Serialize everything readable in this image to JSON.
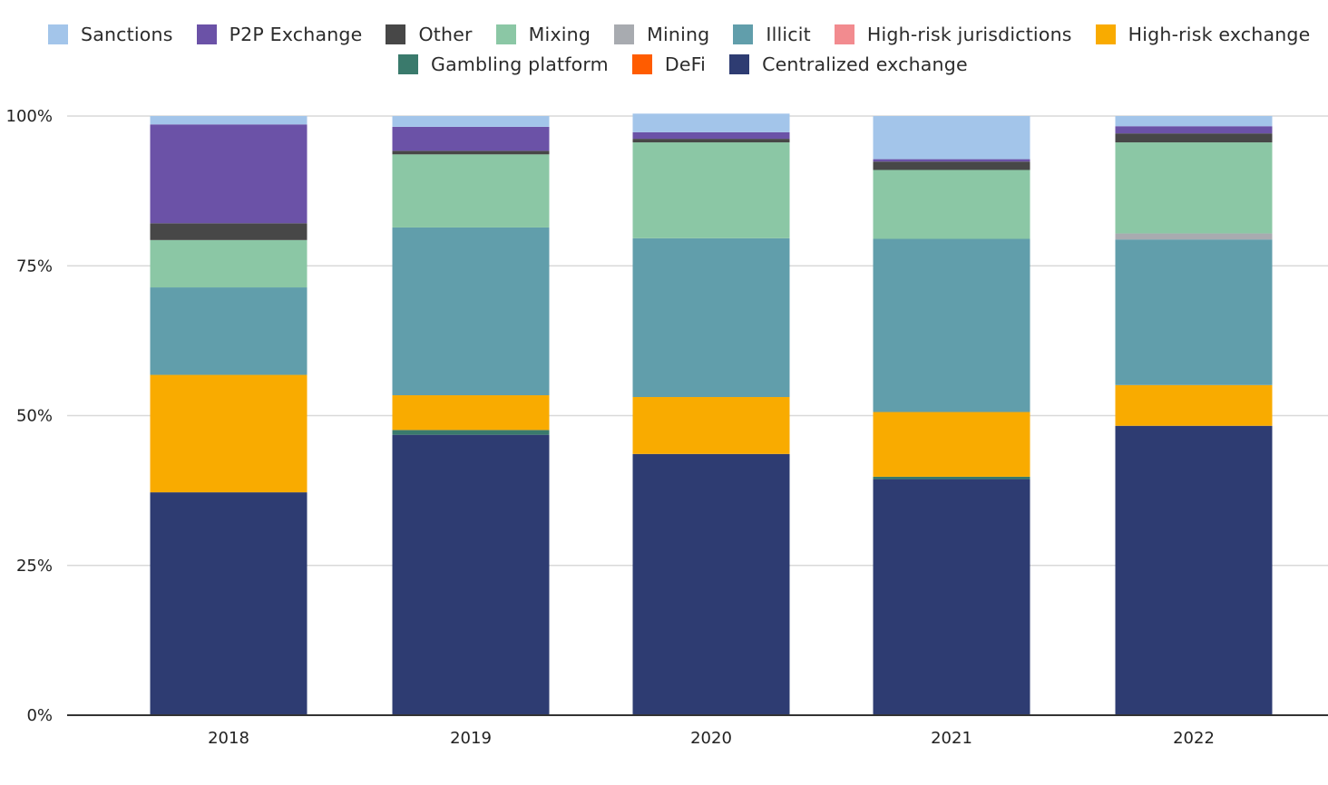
{
  "chart_data": {
    "type": "bar",
    "stacked": true,
    "categories": [
      "2018",
      "2019",
      "2020",
      "2021",
      "2022"
    ],
    "y_ticks": [
      "0%",
      "25%",
      "50%",
      "75%",
      "100%"
    ],
    "ylim": [
      0,
      100
    ],
    "grid": true,
    "legend_position": "top",
    "title": "",
    "xlabel": "",
    "ylabel": "",
    "series": [
      {
        "name": "Centralized exchange",
        "color": "#2e3c72",
        "values": [
          37.2,
          46.8,
          43.6,
          39.4,
          48.3
        ]
      },
      {
        "name": "DeFi",
        "color": "#ff5c00",
        "values": [
          0,
          0,
          0,
          0,
          0
        ]
      },
      {
        "name": "Gambling platform",
        "color": "#3a7a6c",
        "values": [
          0,
          0.8,
          0,
          0.4,
          0
        ]
      },
      {
        "name": "High-risk exchange",
        "color": "#f9ab00",
        "values": [
          19.6,
          5.8,
          9.5,
          10.8,
          6.8
        ]
      },
      {
        "name": "High-risk jurisdictions",
        "color": "#f28b8f",
        "values": [
          0,
          0,
          0,
          0,
          0
        ]
      },
      {
        "name": "Illicit",
        "color": "#619eab",
        "values": [
          14.6,
          28.0,
          26.5,
          28.9,
          24.3
        ]
      },
      {
        "name": "Mining",
        "color": "#a8abb0",
        "values": [
          0,
          0,
          0,
          0,
          1.0
        ]
      },
      {
        "name": "Mixing",
        "color": "#8bc7a5",
        "values": [
          7.9,
          12.2,
          16.0,
          11.5,
          15.2
        ]
      },
      {
        "name": "Other",
        "color": "#474747",
        "values": [
          2.8,
          0.6,
          0.6,
          1.4,
          1.5
        ]
      },
      {
        "name": "P2P Exchange",
        "color": "#6b52a7",
        "values": [
          16.5,
          4.0,
          1.1,
          0.4,
          1.2
        ]
      },
      {
        "name": "Sanctions",
        "color": "#a3c5ea",
        "values": [
          1.4,
          1.8,
          3.1,
          7.2,
          1.7
        ]
      }
    ]
  },
  "legend": {
    "rows": [
      [
        "Sanctions",
        "P2P Exchange",
        "Other",
        "Mixing",
        "Mining",
        "Illicit",
        "High-risk jurisdictions",
        "High-risk exchange"
      ],
      [
        "Gambling platform",
        "DeFi",
        "Centralized exchange"
      ]
    ]
  }
}
